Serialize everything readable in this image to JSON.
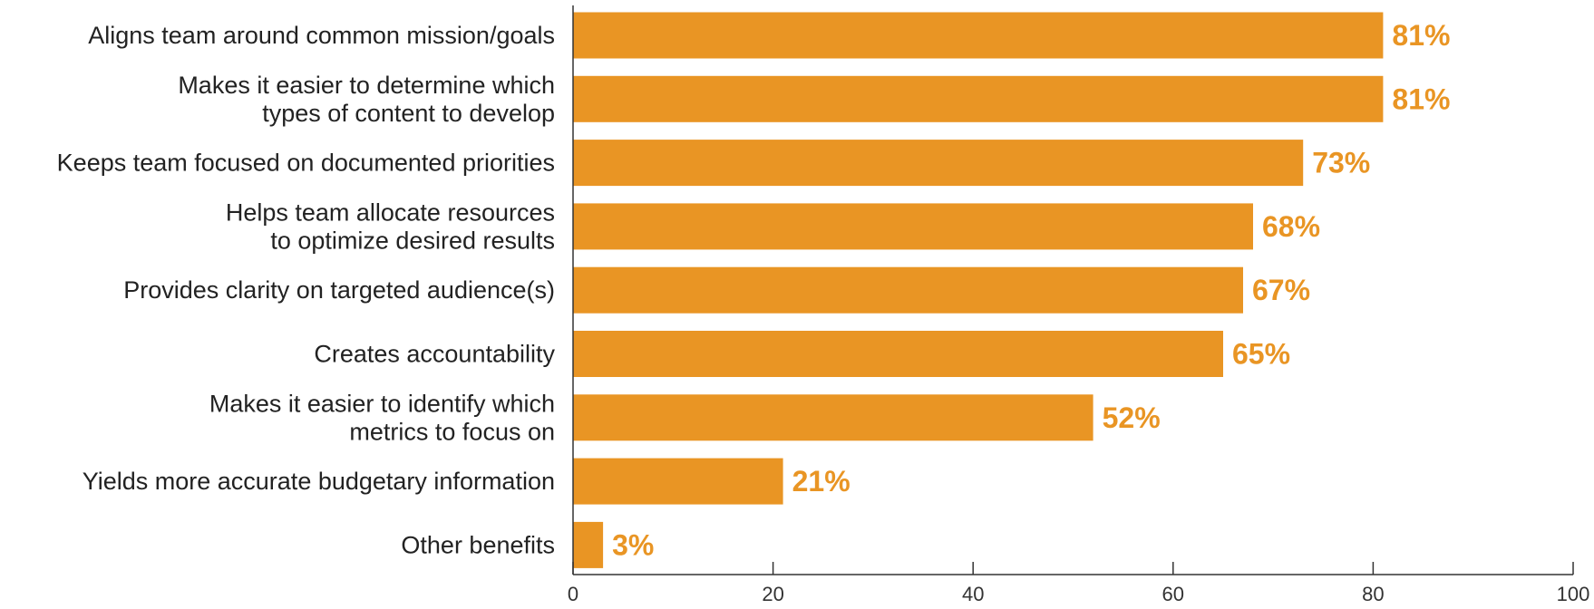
{
  "chart_data": {
    "type": "bar",
    "orientation": "horizontal",
    "categories": [
      "Aligns team around common mission/goals",
      "Makes it easier to determine which\ntypes of content to develop",
      "Keeps team focused on documented priorities",
      "Helps team allocate resources\nto optimize desired results",
      "Provides clarity on targeted audience(s)",
      "Creates accountability",
      "Makes it easier to identify which\nmetrics to focus on",
      "Yields more accurate budgetary information",
      "Other benefits"
    ],
    "values": [
      81,
      81,
      73,
      68,
      67,
      65,
      52,
      21,
      3
    ],
    "data_labels": [
      "81%",
      "81%",
      "73%",
      "68%",
      "67%",
      "65%",
      "52%",
      "21%",
      "3%"
    ],
    "xlim": [
      0,
      100
    ],
    "xticks": [
      0,
      20,
      40,
      60,
      80,
      100
    ],
    "xtick_labels": [
      "0",
      "20",
      "40",
      "60",
      "80",
      "100"
    ],
    "title": "",
    "xlabel": "",
    "ylabel": "",
    "grid": false,
    "legend": "none",
    "colors": {
      "bar": "#E99524",
      "value_label": "#E99524",
      "axis": "#333333",
      "category_text": "#222222"
    }
  }
}
